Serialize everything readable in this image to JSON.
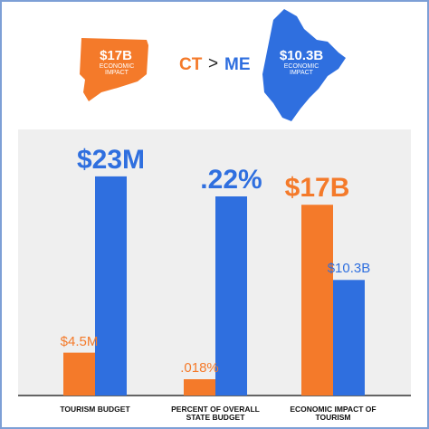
{
  "header": {
    "left_value": "$17B",
    "left_caption": "ECONOMIC IMPACT",
    "left_label": "CT",
    "comparator": ">",
    "right_label": "ME",
    "right_value": "$10.3B",
    "right_caption": "ECONOMIC IMPACT",
    "left_color": "#f47a2a",
    "right_color": "#2f6fdf"
  },
  "chart_data": [
    {
      "type": "bar",
      "categories": [
        "TOURISM BUDGET"
      ],
      "ylim": [
        0,
        28.5
      ],
      "series": [
        {
          "color": "#f47a2a",
          "values": [
            4.5
          ],
          "value_labels": [
            "$4.5M"
          ]
        },
        {
          "color": "#2f6fdf",
          "values": [
            23
          ],
          "value_labels": [
            "$23M"
          ]
        }
      ]
    },
    {
      "type": "bar",
      "categories": [
        "PERCENT OF OVERALL STATE BUDGET"
      ],
      "ylim": [
        0,
        0.3
      ],
      "series": [
        {
          "color": "#f47a2a",
          "values": [
            0.018
          ],
          "value_labels": [
            ".018%"
          ]
        },
        {
          "color": "#2f6fdf",
          "values": [
            0.22
          ],
          "value_labels": [
            ".22%"
          ]
        }
      ]
    },
    {
      "type": "bar",
      "categories": [
        "ECONOMIC IMPACT OF TOURISM"
      ],
      "ylim": [
        0,
        24.2
      ],
      "series": [
        {
          "color": "#f47a2a",
          "values": [
            17
          ],
          "value_labels": [
            "$17B"
          ]
        },
        {
          "color": "#2f6fdf",
          "values": [
            10.3
          ],
          "value_labels": [
            "$10.3B"
          ]
        }
      ]
    }
  ]
}
